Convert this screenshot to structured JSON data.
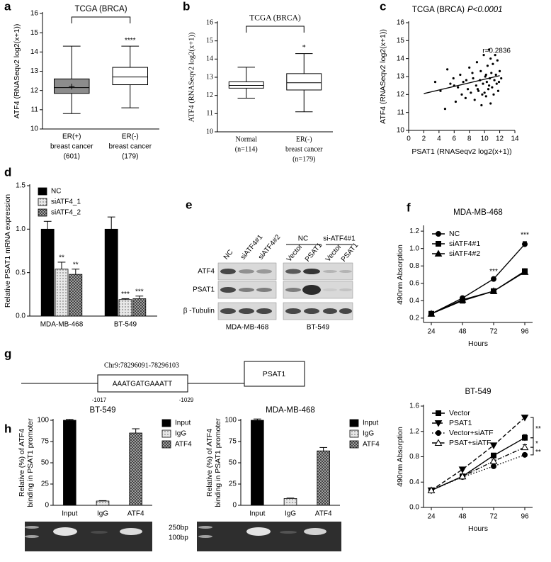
{
  "panel_labels": [
    "a",
    "b",
    "c",
    "d",
    "e",
    "f",
    "g",
    "h"
  ],
  "chart_data": [
    {
      "type": "box",
      "title": "TCGA (BRCA)",
      "ylabel": "ATF4 (RNASeqv2 log2(x+1))",
      "categories": [
        [
          "ER(+)",
          "breast cancer",
          "(601)"
        ],
        [
          "ER(-)",
          "breast cancer",
          "(179)"
        ]
      ],
      "boxes": [
        {
          "min": 10.8,
          "q1": 11.85,
          "median": 12.15,
          "q3": 12.6,
          "max": 14.3,
          "mean": 12.2,
          "color": "#8c8c8c"
        },
        {
          "min": 11.1,
          "q1": 12.3,
          "median": 12.7,
          "q3": 13.2,
          "max": 14.3,
          "color": "#ffffff"
        }
      ],
      "significance": [
        null,
        "****"
      ],
      "ylim": [
        10,
        16
      ],
      "yticks": [
        10,
        11,
        12,
        13,
        14,
        15,
        16
      ]
    },
    {
      "type": "box",
      "title": "TCGA (BRCA)",
      "ylabel": "ATF4 (RNASeqv2 log2(x+1))",
      "categories": [
        [
          "Normal",
          "(n=114)"
        ],
        [
          "ER(-)",
          "breast cancer",
          "(n=179)"
        ]
      ],
      "boxes": [
        {
          "min": 11.85,
          "q1": 12.4,
          "median": 12.55,
          "q3": 12.75,
          "max": 13.55,
          "color": "#ffffff"
        },
        {
          "min": 11.1,
          "q1": 12.3,
          "median": 12.7,
          "q3": 13.2,
          "max": 14.3,
          "color": "#ffffff"
        }
      ],
      "significance": [
        null,
        "*"
      ],
      "ylim": [
        10,
        16
      ],
      "yticks": [
        10,
        11,
        12,
        13,
        14,
        15,
        16
      ]
    },
    {
      "type": "scatter",
      "title": "TCGA (BRCA)",
      "p_value": "P<0.0001",
      "annotation": "r=0.2836",
      "xlabel": "PSAT1 (RNASeqv2 log2(x+1))",
      "ylabel": "ATF4 (RNASeqv2 log2(x+1))",
      "x": [
        3.5,
        4.2,
        4.8,
        5.1,
        5.5,
        5.9,
        6.2,
        6.5,
        6.8,
        7.0,
        7.2,
        7.5,
        7.8,
        8.0,
        8.2,
        8.5,
        8.7,
        8.9,
        9.0,
        9.2,
        9.4,
        9.5,
        9.6,
        9.8,
        9.9,
        10.0,
        10.1,
        10.2,
        10.3,
        10.4,
        10.5,
        10.6,
        10.7,
        10.8,
        10.9,
        11.0,
        11.1,
        11.2,
        11.3,
        11.4,
        11.5,
        11.6,
        11.8,
        12.0,
        12.2,
        9.1,
        8.4,
        10.6,
        11.7,
        7.6,
        6.0,
        10.2,
        9.7,
        11.9,
        10.8
      ],
      "y": [
        12.7,
        12.2,
        11.2,
        13.4,
        12.6,
        12.9,
        11.6,
        12.4,
        13.1,
        12.0,
        12.7,
        11.8,
        12.3,
        13.5,
        12.1,
        12.9,
        11.7,
        12.5,
        13.8,
        12.2,
        12.8,
        13.3,
        11.4,
        12.6,
        14.2,
        12.1,
        13.0,
        11.9,
        12.7,
        13.6,
        12.3,
        14.5,
        12.9,
        11.5,
        13.2,
        12.4,
        13.7,
        12.0,
        12.8,
        14.2,
        13.1,
        12.6,
        12.2,
        13.3,
        12.9,
        12.3,
        13.2,
        12.5,
        13.9,
        12.8,
        12.5,
        13.1,
        12.0,
        12.7,
        14.0
      ],
      "fit": {
        "x": [
          2,
          12
        ],
        "y": [
          12.05,
          13.05
        ]
      },
      "xlim": [
        0,
        14
      ],
      "xticks": [
        0,
        2,
        4,
        6,
        8,
        10,
        12,
        14
      ],
      "ylim": [
        10,
        16
      ],
      "yticks": [
        10,
        11,
        12,
        13,
        14,
        15,
        16
      ]
    },
    {
      "type": "bar",
      "ylabel": "Relative PSAT1 mRNA expression",
      "categories": [
        "MDA-MB-468",
        "BT-549"
      ],
      "series": [
        {
          "name": "NC",
          "color": "#000000",
          "values": [
            1.0,
            1.0
          ],
          "errors": [
            0.09,
            0.14
          ]
        },
        {
          "name": "siATF4_1",
          "color": "#e8e8e8",
          "pattern": "dots",
          "values": [
            0.54,
            0.19
          ],
          "errors": [
            0.08,
            0.01
          ],
          "significance": [
            "**",
            "***"
          ]
        },
        {
          "name": "siATF4_2",
          "color": "#a0a0a0",
          "pattern": "checks",
          "values": [
            0.48,
            0.2
          ],
          "errors": [
            0.06,
            0.03
          ],
          "significance": [
            "**",
            "***"
          ]
        }
      ],
      "legend": "upper left",
      "ylim": [
        0,
        1.5
      ],
      "yticks": [
        {
          "value": 0,
          "label": "0.0"
        },
        0.5,
        {
          "value": 1,
          "label": "1.0"
        },
        1.5
      ]
    },
    {
      "type": "line",
      "title": "MDA-MB-468",
      "xlabel": "Hours",
      "ylabel": "490nm Absorption",
      "x": [
        24,
        48,
        72,
        96
      ],
      "series": [
        {
          "name": "NC",
          "color": "#000000",
          "marker": "circle",
          "line_style": "solid",
          "values": [
            0.25,
            0.43,
            0.65,
            1.05
          ],
          "errors": [
            0.01,
            0.01,
            0.01,
            0.03
          ],
          "significance": [
            null,
            null,
            "***",
            "***"
          ]
        },
        {
          "name": "siATF4#1",
          "color": "#000000",
          "marker": "square",
          "line_style": "solid",
          "values": [
            0.25,
            0.4,
            0.51,
            0.74
          ],
          "errors": [
            0.01,
            0.01,
            0.01,
            0.02
          ]
        },
        {
          "name": "siATF4#2",
          "color": "#000000",
          "marker": "triangle",
          "line_style": "solid",
          "values": [
            0.25,
            0.41,
            0.51,
            0.73
          ],
          "errors": [
            0.01,
            0.01,
            0.01,
            0.02
          ]
        }
      ],
      "legend": "upper left",
      "xlim": [
        18,
        102
      ],
      "ylim": [
        0.15,
        1.25
      ],
      "yticks": [
        0.2,
        0.4,
        0.6,
        0.8,
        {
          "value": 1,
          "label": "1.0"
        },
        1.2
      ]
    },
    {
      "type": "line",
      "title": "BT-549",
      "xlabel": "Hours",
      "ylabel": "490nm Absorption",
      "x": [
        24,
        48,
        72,
        96
      ],
      "series": [
        {
          "name": "Vector",
          "color": "#000000",
          "marker": "square",
          "line_style": "solid",
          "values": [
            0.27,
            0.49,
            0.82,
            1.1
          ],
          "errors": [
            0.02,
            0.02,
            0.02,
            0.05
          ]
        },
        {
          "name": "PSAT1",
          "color": "#000000",
          "marker": "triangle-down",
          "line_style": "dashed",
          "values": [
            0.27,
            0.6,
            0.98,
            1.42
          ],
          "errors": [
            0.02,
            0.02,
            0.02,
            0.02
          ]
        },
        {
          "name": "Vector+siATF",
          "color": "#000000",
          "marker": "circle",
          "line_style": "dotted",
          "values": [
            0.27,
            0.48,
            0.65,
            0.83
          ],
          "errors": [
            0.02,
            0.02,
            0.02,
            0.02
          ]
        },
        {
          "name": "PSAT+siATF",
          "color": "#000000",
          "marker": "triangle-open",
          "line_style": "dashdot",
          "values": [
            0.27,
            0.49,
            0.73,
            0.95
          ],
          "errors": [
            0.02,
            0.02,
            0.02,
            0.04
          ]
        }
      ],
      "comparisons": [
        "**",
        "*",
        "**"
      ],
      "legend": "upper left",
      "xlim": [
        18,
        102
      ],
      "ylim": [
        0,
        1.6
      ],
      "yticks": [
        {
          "value": 0,
          "label": "0.0"
        },
        0.4,
        0.8,
        1.2,
        1.6
      ]
    },
    {
      "type": "bar",
      "title": "BT-549",
      "ylabel": [
        "Relative (%) of  ATF4",
        "binding in PSAT1 promoter"
      ],
      "categories": [
        "Input",
        "IgG",
        "ATF4"
      ],
      "series": [
        {
          "name": "Input",
          "color": "#000000",
          "values": [
            100,
            null,
            null
          ],
          "errors": [
            1,
            null,
            null
          ]
        },
        {
          "name": "IgG",
          "color": "#e8e8e8",
          "pattern": "dots",
          "values": [
            null,
            5,
            null
          ],
          "errors": [
            null,
            0.5,
            null
          ]
        },
        {
          "name": "ATF4",
          "color": "#a0a0a0",
          "pattern": "checks",
          "values": [
            null,
            null,
            85
          ],
          "errors": [
            null,
            null,
            5
          ]
        }
      ],
      "legend": "right",
      "ylim": [
        0,
        100
      ],
      "yticks": [
        0,
        25,
        50,
        75,
        100
      ]
    },
    {
      "type": "bar",
      "title": "MDA-MB-468",
      "ylabel": [
        "Relative (%) of  ATF4",
        "binding in PSAT1 promoter"
      ],
      "categories": [
        "Input",
        "IgG",
        "ATF4"
      ],
      "series": [
        {
          "name": "Input",
          "color": "#000000",
          "values": [
            100,
            null,
            null
          ],
          "errors": [
            1.5,
            null,
            null
          ]
        },
        {
          "name": "IgG",
          "color": "#e8e8e8",
          "pattern": "dots",
          "values": [
            null,
            8,
            null
          ],
          "errors": [
            null,
            0.5,
            null
          ]
        },
        {
          "name": "ATF4",
          "color": "#a0a0a0",
          "pattern": "checks",
          "values": [
            null,
            null,
            64
          ],
          "errors": [
            null,
            null,
            4
          ]
        }
      ],
      "legend": "right",
      "ylim": [
        0,
        100
      ],
      "yticks": [
        0,
        25,
        50,
        75,
        100
      ]
    }
  ],
  "blot": {
    "lanes_left": [
      "NC",
      "siATF4#1",
      "siATF4#2"
    ],
    "groups_right": [
      {
        "label": "NC",
        "lanes": [
          "Vector",
          "PSAT1"
        ]
      },
      {
        "label": "si-ATF4#1",
        "lanes": [
          "Vector",
          "PSAT1"
        ]
      }
    ],
    "rows": [
      "ATF4",
      "PSAT1",
      "β -Tubulin"
    ],
    "cell_lines": [
      "MDA-MB-468",
      "BT-549"
    ]
  },
  "promoter": {
    "region": "Chr9:78296091-78296103",
    "sequence": "AAATGATGAAATT",
    "start": "-1017",
    "end": "-1029",
    "gene": "PSAT1"
  },
  "pcr_gel": {
    "markers": [
      "250bp",
      "100bp"
    ]
  }
}
